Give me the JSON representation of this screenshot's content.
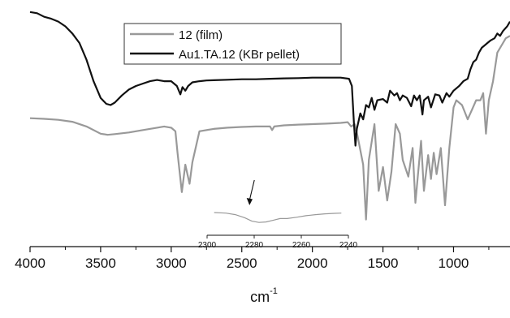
{
  "chart_data": [
    {
      "type": "line",
      "title": "",
      "xlabel": "cm",
      "xlabel_superscript": "-1",
      "ylabel": "",
      "x_reversed": true,
      "xlim": [
        4000,
        600
      ],
      "ylim": [
        0,
        1
      ],
      "x_ticks": [
        4000,
        3500,
        3000,
        2500,
        2000,
        1500,
        1000
      ],
      "x_tick_labels": [
        "4000",
        "3500",
        "3000",
        "2500",
        "2000",
        "1500",
        "1000"
      ],
      "legend_position": "top-left",
      "grid": false,
      "series": [
        {
          "name": "12 (film)",
          "color": "#999999",
          "points": [
            [
              4000,
              0.525
            ],
            [
              3900,
              0.522
            ],
            [
              3800,
              0.518
            ],
            [
              3700,
              0.51
            ],
            [
              3600,
              0.49
            ],
            [
              3500,
              0.46
            ],
            [
              3450,
              0.455
            ],
            [
              3400,
              0.458
            ],
            [
              3300,
              0.465
            ],
            [
              3200,
              0.475
            ],
            [
              3100,
              0.485
            ],
            [
              3050,
              0.49
            ],
            [
              3000,
              0.485
            ],
            [
              2970,
              0.47
            ],
            [
              2955,
              0.38
            ],
            [
              2925,
              0.215
            ],
            [
              2900,
              0.33
            ],
            [
              2870,
              0.25
            ],
            [
              2850,
              0.34
            ],
            [
              2800,
              0.47
            ],
            [
              2700,
              0.48
            ],
            [
              2600,
              0.485
            ],
            [
              2500,
              0.488
            ],
            [
              2400,
              0.49
            ],
            [
              2300,
              0.49
            ],
            [
              2285,
              0.475
            ],
            [
              2270,
              0.49
            ],
            [
              2200,
              0.495
            ],
            [
              2100,
              0.498
            ],
            [
              2000,
              0.5
            ],
            [
              1900,
              0.502
            ],
            [
              1800,
              0.505
            ],
            [
              1750,
              0.508
            ],
            [
              1725,
              0.49
            ],
            [
              1700,
              0.5
            ],
            [
              1680,
              0.45
            ],
            [
              1640,
              0.33
            ],
            [
              1620,
              0.1
            ],
            [
              1600,
              0.35
            ],
            [
              1560,
              0.5
            ],
            [
              1530,
              0.22
            ],
            [
              1500,
              0.32
            ],
            [
              1470,
              0.18
            ],
            [
              1440,
              0.3
            ],
            [
              1410,
              0.5
            ],
            [
              1380,
              0.46
            ],
            [
              1360,
              0.35
            ],
            [
              1320,
              0.28
            ],
            [
              1290,
              0.4
            ],
            [
              1270,
              0.17
            ],
            [
              1250,
              0.3
            ],
            [
              1230,
              0.43
            ],
            [
              1210,
              0.22
            ],
            [
              1180,
              0.37
            ],
            [
              1160,
              0.27
            ],
            [
              1140,
              0.38
            ],
            [
              1120,
              0.29
            ],
            [
              1090,
              0.4
            ],
            [
              1060,
              0.16
            ],
            [
              1030,
              0.4
            ],
            [
              1000,
              0.57
            ],
            [
              980,
              0.6
            ],
            [
              940,
              0.58
            ],
            [
              900,
              0.52
            ],
            [
              870,
              0.56
            ],
            [
              840,
              0.6
            ],
            [
              810,
              0.6
            ],
            [
              790,
              0.63
            ],
            [
              770,
              0.46
            ],
            [
              750,
              0.6
            ],
            [
              720,
              0.68
            ],
            [
              690,
              0.8
            ],
            [
              660,
              0.83
            ],
            [
              630,
              0.86
            ],
            [
              600,
              0.87
            ]
          ]
        },
        {
          "name": "Au1.TA.12 (KBr pellet)",
          "color": "#111111",
          "points": [
            [
              4000,
              0.97
            ],
            [
              3950,
              0.965
            ],
            [
              3900,
              0.95
            ],
            [
              3850,
              0.942
            ],
            [
              3800,
              0.93
            ],
            [
              3750,
              0.91
            ],
            [
              3700,
              0.88
            ],
            [
              3650,
              0.84
            ],
            [
              3600,
              0.77
            ],
            [
              3550,
              0.68
            ],
            [
              3500,
              0.61
            ],
            [
              3460,
              0.585
            ],
            [
              3430,
              0.58
            ],
            [
              3400,
              0.59
            ],
            [
              3350,
              0.62
            ],
            [
              3300,
              0.645
            ],
            [
              3250,
              0.66
            ],
            [
              3200,
              0.67
            ],
            [
              3150,
              0.68
            ],
            [
              3100,
              0.685
            ],
            [
              3050,
              0.68
            ],
            [
              3000,
              0.68
            ],
            [
              2960,
              0.66
            ],
            [
              2935,
              0.625
            ],
            [
              2920,
              0.655
            ],
            [
              2900,
              0.64
            ],
            [
              2880,
              0.66
            ],
            [
              2850,
              0.675
            ],
            [
              2800,
              0.68
            ],
            [
              2750,
              0.683
            ],
            [
              2700,
              0.684
            ],
            [
              2600,
              0.686
            ],
            [
              2500,
              0.688
            ],
            [
              2400,
              0.688
            ],
            [
              2300,
              0.69
            ],
            [
              2200,
              0.692
            ],
            [
              2100,
              0.693
            ],
            [
              2000,
              0.695
            ],
            [
              1900,
              0.695
            ],
            [
              1800,
              0.695
            ],
            [
              1740,
              0.69
            ],
            [
              1720,
              0.66
            ],
            [
              1705,
              0.5
            ],
            [
              1695,
              0.41
            ],
            [
              1685,
              0.48
            ],
            [
              1660,
              0.545
            ],
            [
              1640,
              0.52
            ],
            [
              1620,
              0.58
            ],
            [
              1600,
              0.57
            ],
            [
              1580,
              0.61
            ],
            [
              1560,
              0.56
            ],
            [
              1540,
              0.6
            ],
            [
              1500,
              0.605
            ],
            [
              1470,
              0.59
            ],
            [
              1450,
              0.64
            ],
            [
              1420,
              0.62
            ],
            [
              1400,
              0.63
            ],
            [
              1380,
              0.6
            ],
            [
              1360,
              0.62
            ],
            [
              1330,
              0.61
            ],
            [
              1300,
              0.575
            ],
            [
              1280,
              0.62
            ],
            [
              1260,
              0.6
            ],
            [
              1240,
              0.62
            ],
            [
              1220,
              0.54
            ],
            [
              1210,
              0.6
            ],
            [
              1180,
              0.615
            ],
            [
              1160,
              0.57
            ],
            [
              1130,
              0.625
            ],
            [
              1100,
              0.62
            ],
            [
              1080,
              0.59
            ],
            [
              1050,
              0.63
            ],
            [
              1030,
              0.615
            ],
            [
              1000,
              0.64
            ],
            [
              980,
              0.65
            ],
            [
              960,
              0.66
            ],
            [
              930,
              0.68
            ],
            [
              900,
              0.69
            ],
            [
              880,
              0.73
            ],
            [
              860,
              0.76
            ],
            [
              840,
              0.77
            ],
            [
              820,
              0.8
            ],
            [
              800,
              0.82
            ],
            [
              780,
              0.83
            ],
            [
              760,
              0.84
            ],
            [
              740,
              0.85
            ],
            [
              710,
              0.86
            ],
            [
              690,
              0.88
            ],
            [
              670,
              0.87
            ],
            [
              650,
              0.89
            ],
            [
              620,
              0.91
            ],
            [
              600,
              0.93
            ]
          ]
        }
      ]
    },
    {
      "type": "line",
      "title": "",
      "x_reversed": true,
      "xlim": [
        2300,
        2240
      ],
      "ylim": [
        0,
        1
      ],
      "x_ticks": [
        2300,
        2280,
        2260,
        2240
      ],
      "x_tick_labels": [
        "2300",
        "2280",
        "2260",
        "2240"
      ],
      "series": [
        {
          "name": "",
          "color": "#999999",
          "points": [
            [
              2297,
              0.78
            ],
            [
              2292,
              0.76
            ],
            [
              2288,
              0.7
            ],
            [
              2284,
              0.58
            ],
            [
              2281,
              0.45
            ],
            [
              2278,
              0.4
            ],
            [
              2275,
              0.42
            ],
            [
              2272,
              0.48
            ],
            [
              2269,
              0.55
            ],
            [
              2266,
              0.55
            ],
            [
              2262,
              0.6
            ],
            [
              2258,
              0.66
            ],
            [
              2254,
              0.7
            ],
            [
              2250,
              0.73
            ],
            [
              2246,
              0.75
            ],
            [
              2243,
              0.76
            ]
          ]
        }
      ],
      "annotations": [
        {
          "type": "arrow",
          "points_to_x": 2282
        }
      ]
    }
  ]
}
